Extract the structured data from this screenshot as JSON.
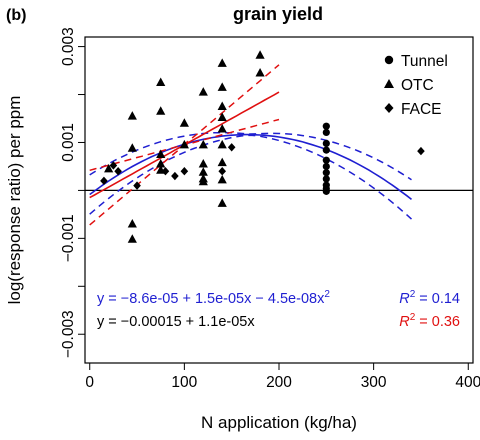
{
  "panel_label": "(b)",
  "chart_data": {
    "type": "scatter",
    "title": "grain yield",
    "xlabel": "N application (kg/ha)",
    "ylabel": "log(response ratio) per ppm",
    "xlim": [
      -5,
      405
    ],
    "ylim": [
      -0.0036,
      0.0032
    ],
    "xticks": [
      0,
      100,
      200,
      300,
      400
    ],
    "yticks": [
      -0.003,
      -0.002,
      -0.001,
      0,
      0.001,
      0.002,
      0.003
    ],
    "ytick_labels": [
      "−0.003",
      "",
      "−0.001",
      "",
      "0.001",
      "",
      "0.003"
    ],
    "grid": false,
    "legend_position": "top-right",
    "legend": [
      {
        "label": "Tunnel",
        "marker": "circle"
      },
      {
        "label": "OTC",
        "marker": "triangle"
      },
      {
        "label": "FACE",
        "marker": "diamond"
      }
    ],
    "series": [
      {
        "name": "Tunnel",
        "marker": "circle",
        "points": [
          [
            250,
            0.00134
          ],
          [
            250,
            0.00121
          ],
          [
            250,
            0.00098
          ],
          [
            250,
            0.00084
          ],
          [
            250,
            0.00063
          ],
          [
            250,
            0.0005
          ],
          [
            250,
            0.00037
          ],
          [
            250,
            0.00024
          ],
          [
            250,
            0.00011
          ],
          [
            250,
            4e-05
          ],
          [
            250,
            -2e-05
          ]
        ]
      },
      {
        "name": "OTC",
        "marker": "triangle",
        "points": [
          [
            20,
            0.00045
          ],
          [
            45,
            0.00155
          ],
          [
            45,
            0.00088
          ],
          [
            45,
            -0.0007
          ],
          [
            45,
            -0.00102
          ],
          [
            75,
            0.00225
          ],
          [
            75,
            0.00165
          ],
          [
            75,
            0.00075
          ],
          [
            75,
            0.00055
          ],
          [
            75,
            0.00042
          ],
          [
            100,
            0.0014
          ],
          [
            100,
            0.00095
          ],
          [
            120,
            0.00205
          ],
          [
            120,
            0.00095
          ],
          [
            120,
            0.00055
          ],
          [
            120,
            0.00038
          ],
          [
            120,
            0.00024
          ],
          [
            120,
            0.00018
          ],
          [
            140,
            0.00265
          ],
          [
            140,
            0.00215
          ],
          [
            140,
            0.00175
          ],
          [
            140,
            0.00152
          ],
          [
            140,
            0.00128
          ],
          [
            140,
            0.00095
          ],
          [
            140,
            0.00058
          ],
          [
            140,
            0.00022
          ],
          [
            140,
            -0.00027
          ],
          [
            180,
            0.00282
          ],
          [
            180,
            0.00245
          ]
        ]
      },
      {
        "name": "FACE",
        "marker": "diamond",
        "points": [
          [
            15,
            0.0002
          ],
          [
            25,
            0.00052
          ],
          [
            30,
            0.0004
          ],
          [
            50,
            0.0001
          ],
          [
            80,
            0.0004
          ],
          [
            90,
            0.0003
          ],
          [
            100,
            0.0004
          ],
          [
            140,
            0.0004
          ],
          [
            150,
            0.0009
          ],
          [
            350,
            0.00082
          ]
        ]
      }
    ],
    "fits": [
      {
        "name": "quadratic",
        "color": "#1f1fd1",
        "intercept": -8.6e-05,
        "b1": 1.5e-05,
        "b2": -4.5e-08,
        "x_range": [
          0,
          340
        ],
        "ci_half": {
          "a": 0.00041,
          "b": 0.0001
        }
      },
      {
        "name": "linear",
        "color": "#e01010",
        "intercept": -0.00015,
        "b1": 1.1e-05,
        "x_range": [
          0,
          200
        ],
        "ci_half": {
          "a": 0.00057,
          "b": 0.00012
        }
      }
    ],
    "hline": 0,
    "annotations": [
      {
        "text": "y = −8.6e-05 + 1.5e-05x − 4.5e-08x",
        "sup": "2",
        "color": "#1f1fd1",
        "align": "left"
      },
      {
        "text": "y = −0.00015 + 1.1e-05x",
        "color": "#e01010",
        "align": "left"
      },
      {
        "r2_label": "R",
        "r2_value": " = 0.14",
        "color": "#1f1fd1",
        "align": "right"
      },
      {
        "r2_label": "R",
        "r2_value": " = 0.36",
        "color": "#e01010",
        "align": "right"
      }
    ]
  }
}
